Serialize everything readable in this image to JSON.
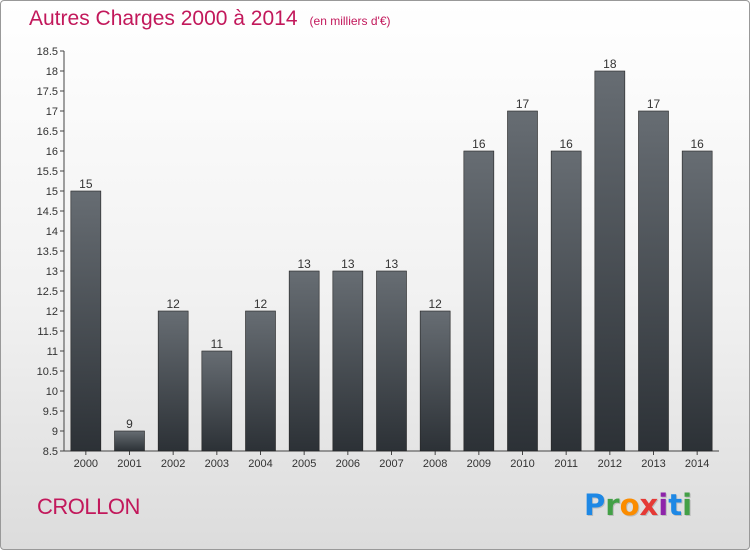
{
  "header": {
    "title": "Autres Charges 2000 à 2014",
    "unit": "(en milliers d'€)"
  },
  "footer": {
    "commune": "CROLLON",
    "logo_letters": [
      {
        "char": "P",
        "color": "#1e88e5"
      },
      {
        "char": "r",
        "color": "#43a047"
      },
      {
        "char": "o",
        "color": "#fb8c00"
      },
      {
        "char": "x",
        "color": "#e53935"
      },
      {
        "char": "i",
        "color": "#8e24aa"
      },
      {
        "char": "t",
        "color": "#1e88e5"
      },
      {
        "char": "i",
        "color": "#43a047"
      }
    ]
  },
  "chart_data": {
    "type": "bar",
    "title": "Autres Charges 2000 à 2014",
    "subtitle": "(en milliers d'€)",
    "categories": [
      "2000",
      "2001",
      "2002",
      "2003",
      "2004",
      "2005",
      "2006",
      "2007",
      "2008",
      "2009",
      "2010",
      "2011",
      "2012",
      "2013",
      "2014"
    ],
    "values": [
      15,
      9,
      12,
      11,
      12,
      13,
      13,
      13,
      12,
      16,
      17,
      16,
      18,
      17,
      16
    ],
    "value_labels": [
      "15",
      "9",
      "12",
      "11",
      "12",
      "13",
      "13",
      "13",
      "12",
      "16",
      "17",
      "16",
      "18",
      "17",
      "16"
    ],
    "ylim": [
      8.5,
      18.5
    ],
    "yticks": [
      8.5,
      9,
      9.5,
      10,
      10.5,
      11,
      11.5,
      12,
      12.5,
      13,
      13.5,
      14,
      14.5,
      15,
      15.5,
      16,
      16.5,
      17,
      17.5,
      18,
      18.5
    ],
    "ytick_labels": [
      "8.5",
      "9",
      "9.5",
      "10",
      "10.5",
      "11",
      "11.5",
      "12",
      "12.5",
      "13",
      "13.5",
      "14",
      "14.5",
      "15",
      "15.5",
      "16",
      "16.5",
      "17",
      "17.5",
      "18",
      "18.5"
    ],
    "grid": false,
    "legend": "none",
    "bar_color_top": "#676d73",
    "bar_color_bottom": "#2c3136"
  }
}
